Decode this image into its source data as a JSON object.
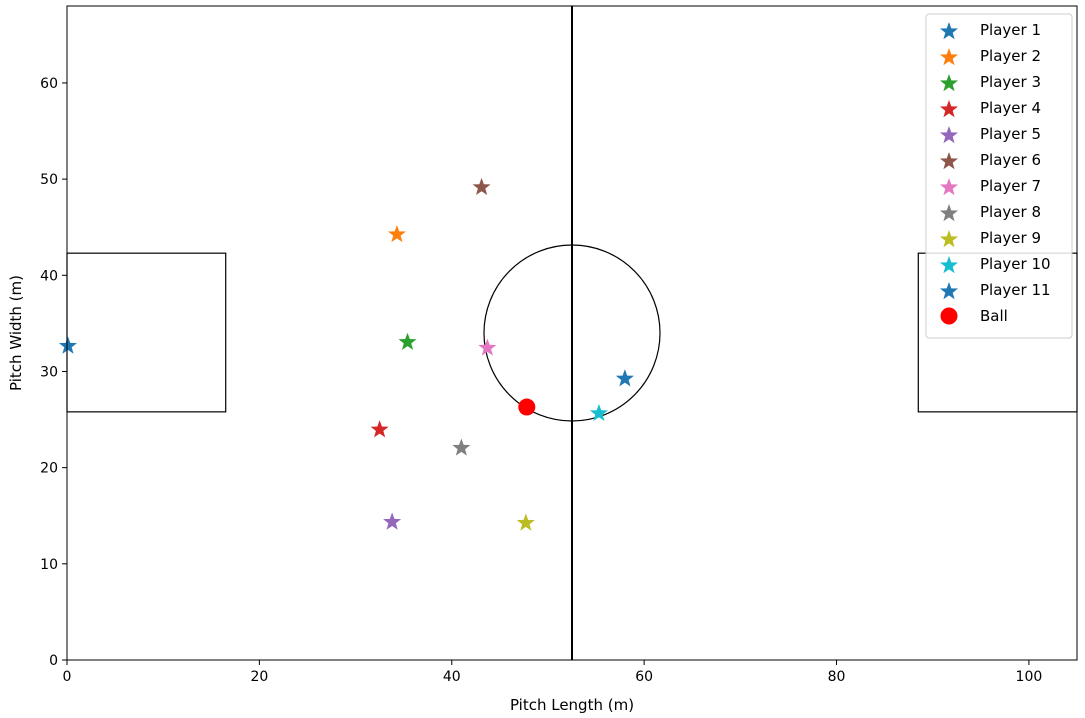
{
  "chart_data": {
    "type": "scatter",
    "xlabel": "Pitch Length (m)",
    "ylabel": "Pitch Width (m)",
    "xlim": [
      0,
      105
    ],
    "ylim": [
      0,
      68
    ],
    "x_ticks": [
      0,
      20,
      40,
      60,
      80,
      100
    ],
    "y_ticks": [
      0,
      10,
      20,
      30,
      40,
      50,
      60
    ],
    "grid": false,
    "legend_position": "top-right",
    "pitch": {
      "halfway_line_x": 52.5,
      "center_circle": {
        "cx": 52.5,
        "cy": 34,
        "r": 9.15
      },
      "left_box": {
        "x0": 0,
        "x1": 16.5,
        "y0": 25.8,
        "y1": 42.3
      },
      "right_box": {
        "x0": 88.5,
        "x1": 105,
        "y0": 25.8,
        "y1": 42.3
      }
    },
    "series": [
      {
        "name": "Player 1",
        "marker": "star",
        "color": "#1f77b4",
        "x": 0.1,
        "y": 32.8
      },
      {
        "name": "Player 2",
        "marker": "star",
        "color": "#ff7f0e",
        "x": 34.3,
        "y": 44.4
      },
      {
        "name": "Player 3",
        "marker": "star",
        "color": "#2ca02c",
        "x": 35.4,
        "y": 33.2
      },
      {
        "name": "Player 4",
        "marker": "star",
        "color": "#d62728",
        "x": 32.5,
        "y": 24.1
      },
      {
        "name": "Player 5",
        "marker": "star",
        "color": "#9467bd",
        "x": 33.8,
        "y": 14.5
      },
      {
        "name": "Player 6",
        "marker": "star",
        "color": "#8c564b",
        "x": 43.1,
        "y": 49.3
      },
      {
        "name": "Player 7",
        "marker": "star",
        "color": "#e377c2",
        "x": 43.7,
        "y": 32.6
      },
      {
        "name": "Player 8",
        "marker": "star",
        "color": "#7f7f7f",
        "x": 41.0,
        "y": 22.2
      },
      {
        "name": "Player 9",
        "marker": "star",
        "color": "#bcbd22",
        "x": 47.7,
        "y": 14.4
      },
      {
        "name": "Player 10",
        "marker": "star",
        "color": "#17becf",
        "x": 55.3,
        "y": 25.8
      },
      {
        "name": "Player 11",
        "marker": "star",
        "color": "#1f77b4",
        "x": 58.0,
        "y": 29.4
      },
      {
        "name": "Ball",
        "marker": "circle",
        "color": "#ff0000",
        "x": 47.8,
        "y": 26.3
      }
    ]
  }
}
